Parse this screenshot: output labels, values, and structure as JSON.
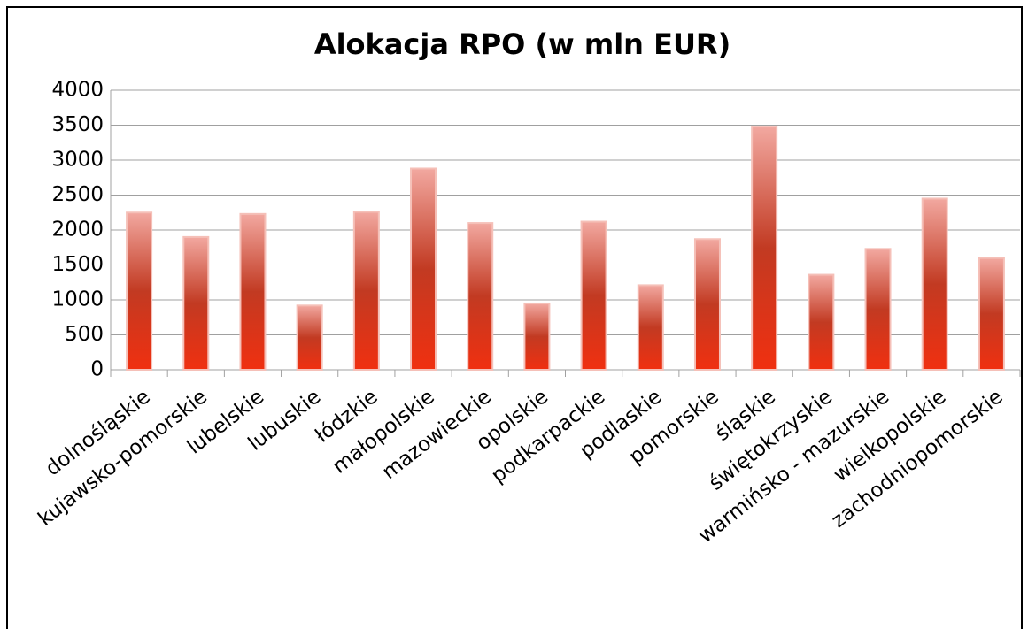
{
  "chart_data": {
    "type": "bar",
    "title": "Alokacja RPO (w mln EUR)",
    "categories": [
      "dolnośląskie",
      "kujawsko-pomorskie",
      "lubelskie",
      "lubuskie",
      "łódzkie",
      "małopolskie",
      "mazowieckie",
      "opolskie",
      "podkarpackie",
      "podlaskie",
      "pomorskie",
      "śląskie",
      "świętokrzyskie",
      "warmińsko - mazurskie",
      "wielkopolskie",
      "zachodniopomorskie"
    ],
    "values": [
      2250,
      1900,
      2230,
      920,
      2260,
      2880,
      2100,
      950,
      2120,
      1210,
      1870,
      3480,
      1360,
      1730,
      2450,
      1600
    ],
    "color": "#c23a22",
    "ylim": [
      0,
      4000
    ],
    "yticks": [
      0,
      500,
      1000,
      1500,
      2000,
      2500,
      3000,
      3500,
      4000
    ],
    "grid": true
  }
}
